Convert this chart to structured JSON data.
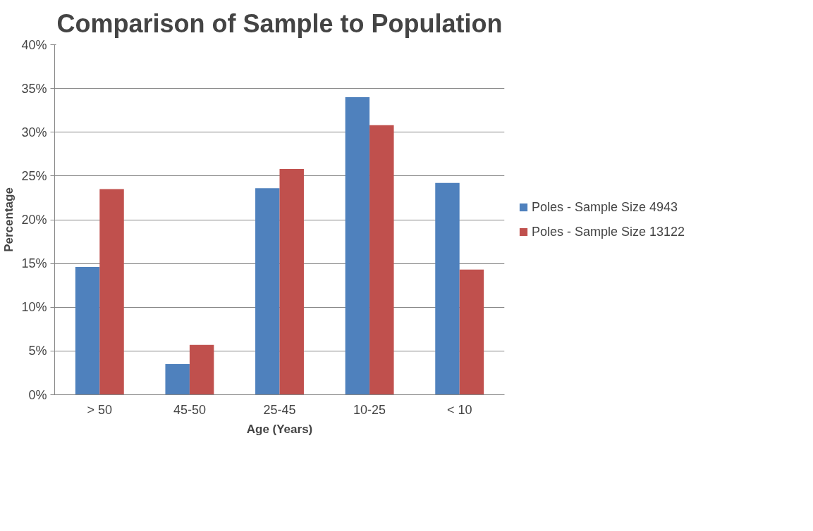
{
  "chart_data": {
    "type": "bar",
    "title": "Comparison of Sample to Population",
    "xlabel": "Age (Years)",
    "ylabel": "Percentage",
    "categories": [
      "> 50",
      "45-50",
      "25-45",
      "10-25",
      "< 10"
    ],
    "series": [
      {
        "name": "Poles - Sample Size 4943",
        "color": "#4f81bd",
        "values": [
          14.6,
          3.5,
          23.6,
          34.0,
          24.2
        ]
      },
      {
        "name": "Poles - Sample Size 13122",
        "color": "#c0504d",
        "values": [
          23.5,
          5.7,
          25.8,
          30.8,
          14.3
        ]
      }
    ],
    "ylim": [
      0,
      40
    ],
    "yticks": [
      {
        "value": 0,
        "label": "0%"
      },
      {
        "value": 5,
        "label": "5%"
      },
      {
        "value": 10,
        "label": "10%"
      },
      {
        "value": 15,
        "label": "15%"
      },
      {
        "value": 20,
        "label": "20%"
      },
      {
        "value": 25,
        "label": "25%"
      },
      {
        "value": 30,
        "label": "30%"
      },
      {
        "value": 35,
        "label": "35%"
      },
      {
        "value": 40,
        "label": "40%"
      }
    ],
    "grid": "y",
    "legend": "right"
  }
}
